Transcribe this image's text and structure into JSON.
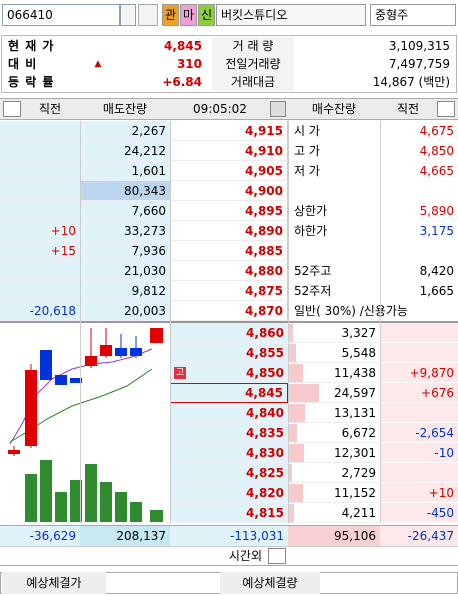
{
  "toolbar": {
    "code": "066410",
    "buttons": [
      "관",
      "마",
      "신"
    ],
    "name": "버킷스튜디오",
    "sector": "중형주"
  },
  "summary": [
    {
      "label": "현 재 가",
      "value": "4,845",
      "label2": "거 래 량",
      "value2": "3,109,315"
    },
    {
      "label": "대 비",
      "sign": "▲",
      "value": "310",
      "label2": "전일거래량",
      "value2": "7,497,759"
    },
    {
      "label": "등 락 률",
      "value": "+6.84",
      "label2": "거래대금",
      "value2": "14,867 (백만)"
    }
  ],
  "header": {
    "prev_left": "직전",
    "ask_volume": "매도잔량",
    "time": "09:05:02",
    "bid_volume": "매수잔량",
    "prev_right": "직전"
  },
  "asks": [
    {
      "volume": "2,267",
      "price": "4,915",
      "info": {
        "label": "시 가",
        "value": "4,675",
        "color": "#d00000"
      }
    },
    {
      "volume": "24,212",
      "price": "4,910",
      "info": {
        "label": "고 가",
        "value": "4,850",
        "color": "#d00000"
      }
    },
    {
      "volume": "1,601",
      "price": "4,905",
      "info": {
        "label": "저 가",
        "value": "4,665",
        "color": "#d00000"
      }
    },
    {
      "volume": "80,343",
      "price": "4,900"
    },
    {
      "volume": "7,660",
      "price": "4,895",
      "info": {
        "label": "상한가",
        "value": "5,890",
        "color": "#d00000"
      }
    },
    {
      "change": "+10",
      "volume": "33,273",
      "price": "4,890",
      "info": {
        "label": "하한가",
        "value": "3,175",
        "color": "#0033cc"
      }
    },
    {
      "change": "+15",
      "volume": "7,936",
      "price": "4,885"
    },
    {
      "volume": "21,030",
      "price": "4,880",
      "info": {
        "label": "52주고",
        "value": "8,420",
        "color": "#000000"
      }
    },
    {
      "volume": "9,812",
      "price": "4,875",
      "info": {
        "label": "52주저",
        "value": "1,665",
        "color": "#000000"
      }
    },
    {
      "change": "-20,618",
      "volume": "20,003",
      "price": "4,870",
      "info": {
        "label": "일반( 30%) /신용가능"
      }
    }
  ],
  "bids": [
    {
      "price": "4,860",
      "volume": "3,327"
    },
    {
      "price": "4,855",
      "volume": "5,548"
    },
    {
      "price": "4,850",
      "marker": "고",
      "volume": "11,438",
      "change": "+9,870"
    },
    {
      "price": "4,845",
      "volume": "24,597",
      "change": "+676",
      "current": true
    },
    {
      "price": "4,840",
      "volume": "13,131"
    },
    {
      "price": "4,835",
      "volume": "6,672",
      "change": "-2,654"
    },
    {
      "price": "4,830",
      "volume": "12,301",
      "change": "-10"
    },
    {
      "price": "4,825",
      "volume": "2,729"
    },
    {
      "price": "4,820",
      "volume": "11,152",
      "change": "+10"
    },
    {
      "price": "4,815",
      "volume": "4,211",
      "change": "-450"
    }
  ],
  "totals": {
    "ask_change": "-36,629",
    "ask_volume": "208,137",
    "net": "-113,031",
    "bid_volume": "95,106",
    "bid_change": "-26,437"
  },
  "after_hours": "시간외",
  "footer": {
    "expected_price_label": "예상체결가",
    "expected_volume_label": "예상체결량"
  }
}
